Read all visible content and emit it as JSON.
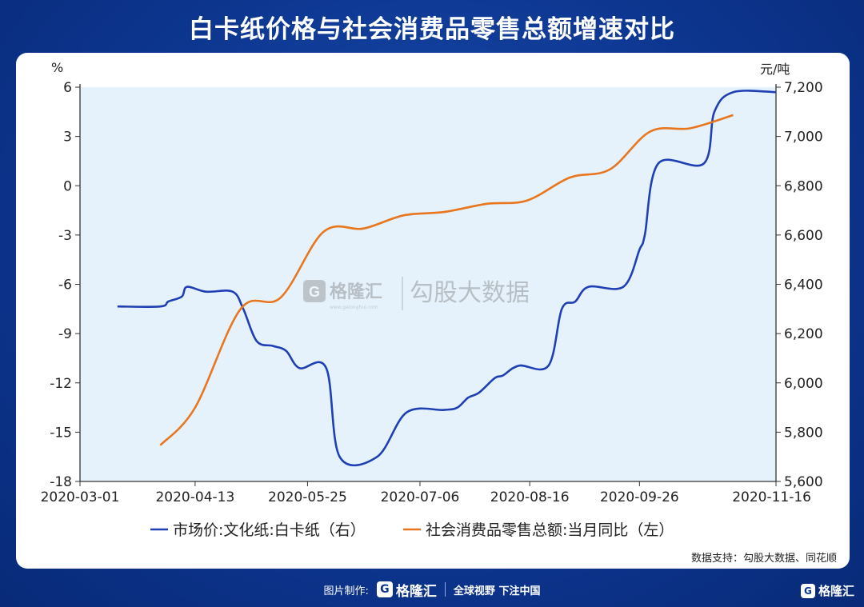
{
  "title": "白卡纸价格与社会消费品零售总额增速对比",
  "watermark": {
    "brand": "格隆汇",
    "sub": "www.gelonghui.com",
    "product": "勾股大数据"
  },
  "source": "数据支持：勾股大数据、同花顺",
  "footer": {
    "made_label": "图片制作:",
    "brand": "格隆汇",
    "slogan": "全球视野 下注中国"
  },
  "corner_brand": "格隆汇",
  "colors": {
    "series_price": "#1f3fb5",
    "series_retail": "#e8761e",
    "plot_bg": "#e5f2fb"
  },
  "chart_data": {
    "type": "line",
    "x_ticks": [
      "2020-03-01",
      "2020-04-13",
      "2020-05-25",
      "2020-07-06",
      "2020-08-16",
      "2020-09-26",
      "2020-11-16"
    ],
    "y_left": {
      "unit": "%",
      "ticks": [
        "6",
        "3",
        "0",
        "-3",
        "-6",
        "-9",
        "-12",
        "-15",
        "-18"
      ],
      "range": [
        -18,
        6
      ]
    },
    "y_right": {
      "unit": "元/吨",
      "ticks": [
        "7,200",
        "7,000",
        "6,800",
        "6,600",
        "6,400",
        "6,200",
        "6,000",
        "5,800",
        "5,600"
      ],
      "range": [
        5600,
        7200
      ]
    },
    "x_range": [
      "2020-03-01",
      "2020-11-16"
    ],
    "series": [
      {
        "name": "市场价:文化纸:白卡纸（右）",
        "axis": "right",
        "points": [
          [
            "2020-03-15",
            6310
          ],
          [
            "2020-03-31",
            6310
          ],
          [
            "2020-04-03",
            6330
          ],
          [
            "2020-04-08",
            6350
          ],
          [
            "2020-04-10",
            6390
          ],
          [
            "2020-04-17",
            6370
          ],
          [
            "2020-04-27",
            6370
          ],
          [
            "2020-05-01",
            6300
          ],
          [
            "2020-05-06",
            6170
          ],
          [
            "2020-05-12",
            6150
          ],
          [
            "2020-05-17",
            6130
          ],
          [
            "2020-05-22",
            6060
          ],
          [
            "2020-06-01",
            6060
          ],
          [
            "2020-06-06",
            5700
          ],
          [
            "2020-06-20",
            5700
          ],
          [
            "2020-07-01",
            5880
          ],
          [
            "2020-07-15",
            5890
          ],
          [
            "2020-07-20",
            5900
          ],
          [
            "2020-07-24",
            5940
          ],
          [
            "2020-07-28",
            5960
          ],
          [
            "2020-08-03",
            6020
          ],
          [
            "2020-08-06",
            6030
          ],
          [
            "2020-08-12",
            6070
          ],
          [
            "2020-08-23",
            6070
          ],
          [
            "2020-08-28",
            6300
          ],
          [
            "2020-09-02",
            6330
          ],
          [
            "2020-09-07",
            6390
          ],
          [
            "2020-09-20",
            6390
          ],
          [
            "2020-09-26",
            6540
          ],
          [
            "2020-09-28",
            6600
          ],
          [
            "2020-10-03",
            6890
          ],
          [
            "2020-10-20",
            6890
          ],
          [
            "2020-10-24",
            7100
          ],
          [
            "2020-10-31",
            7180
          ],
          [
            "2020-11-16",
            7180
          ]
        ]
      },
      {
        "name": "社会消费品零售总额:当月同比（左）",
        "axis": "left",
        "points": [
          [
            "2020-03-31",
            -15.8
          ],
          [
            "2020-04-13",
            -13.5
          ],
          [
            "2020-04-30",
            -7.5
          ],
          [
            "2020-05-15",
            -6.8
          ],
          [
            "2020-05-31",
            -2.8
          ],
          [
            "2020-06-15",
            -2.6
          ],
          [
            "2020-06-30",
            -1.8
          ],
          [
            "2020-07-15",
            -1.6
          ],
          [
            "2020-07-31",
            -1.1
          ],
          [
            "2020-08-15",
            -0.9
          ],
          [
            "2020-08-31",
            0.5
          ],
          [
            "2020-09-15",
            1.0
          ],
          [
            "2020-09-30",
            3.3
          ],
          [
            "2020-10-15",
            3.5
          ],
          [
            "2020-10-31",
            4.3
          ]
        ]
      }
    ]
  }
}
